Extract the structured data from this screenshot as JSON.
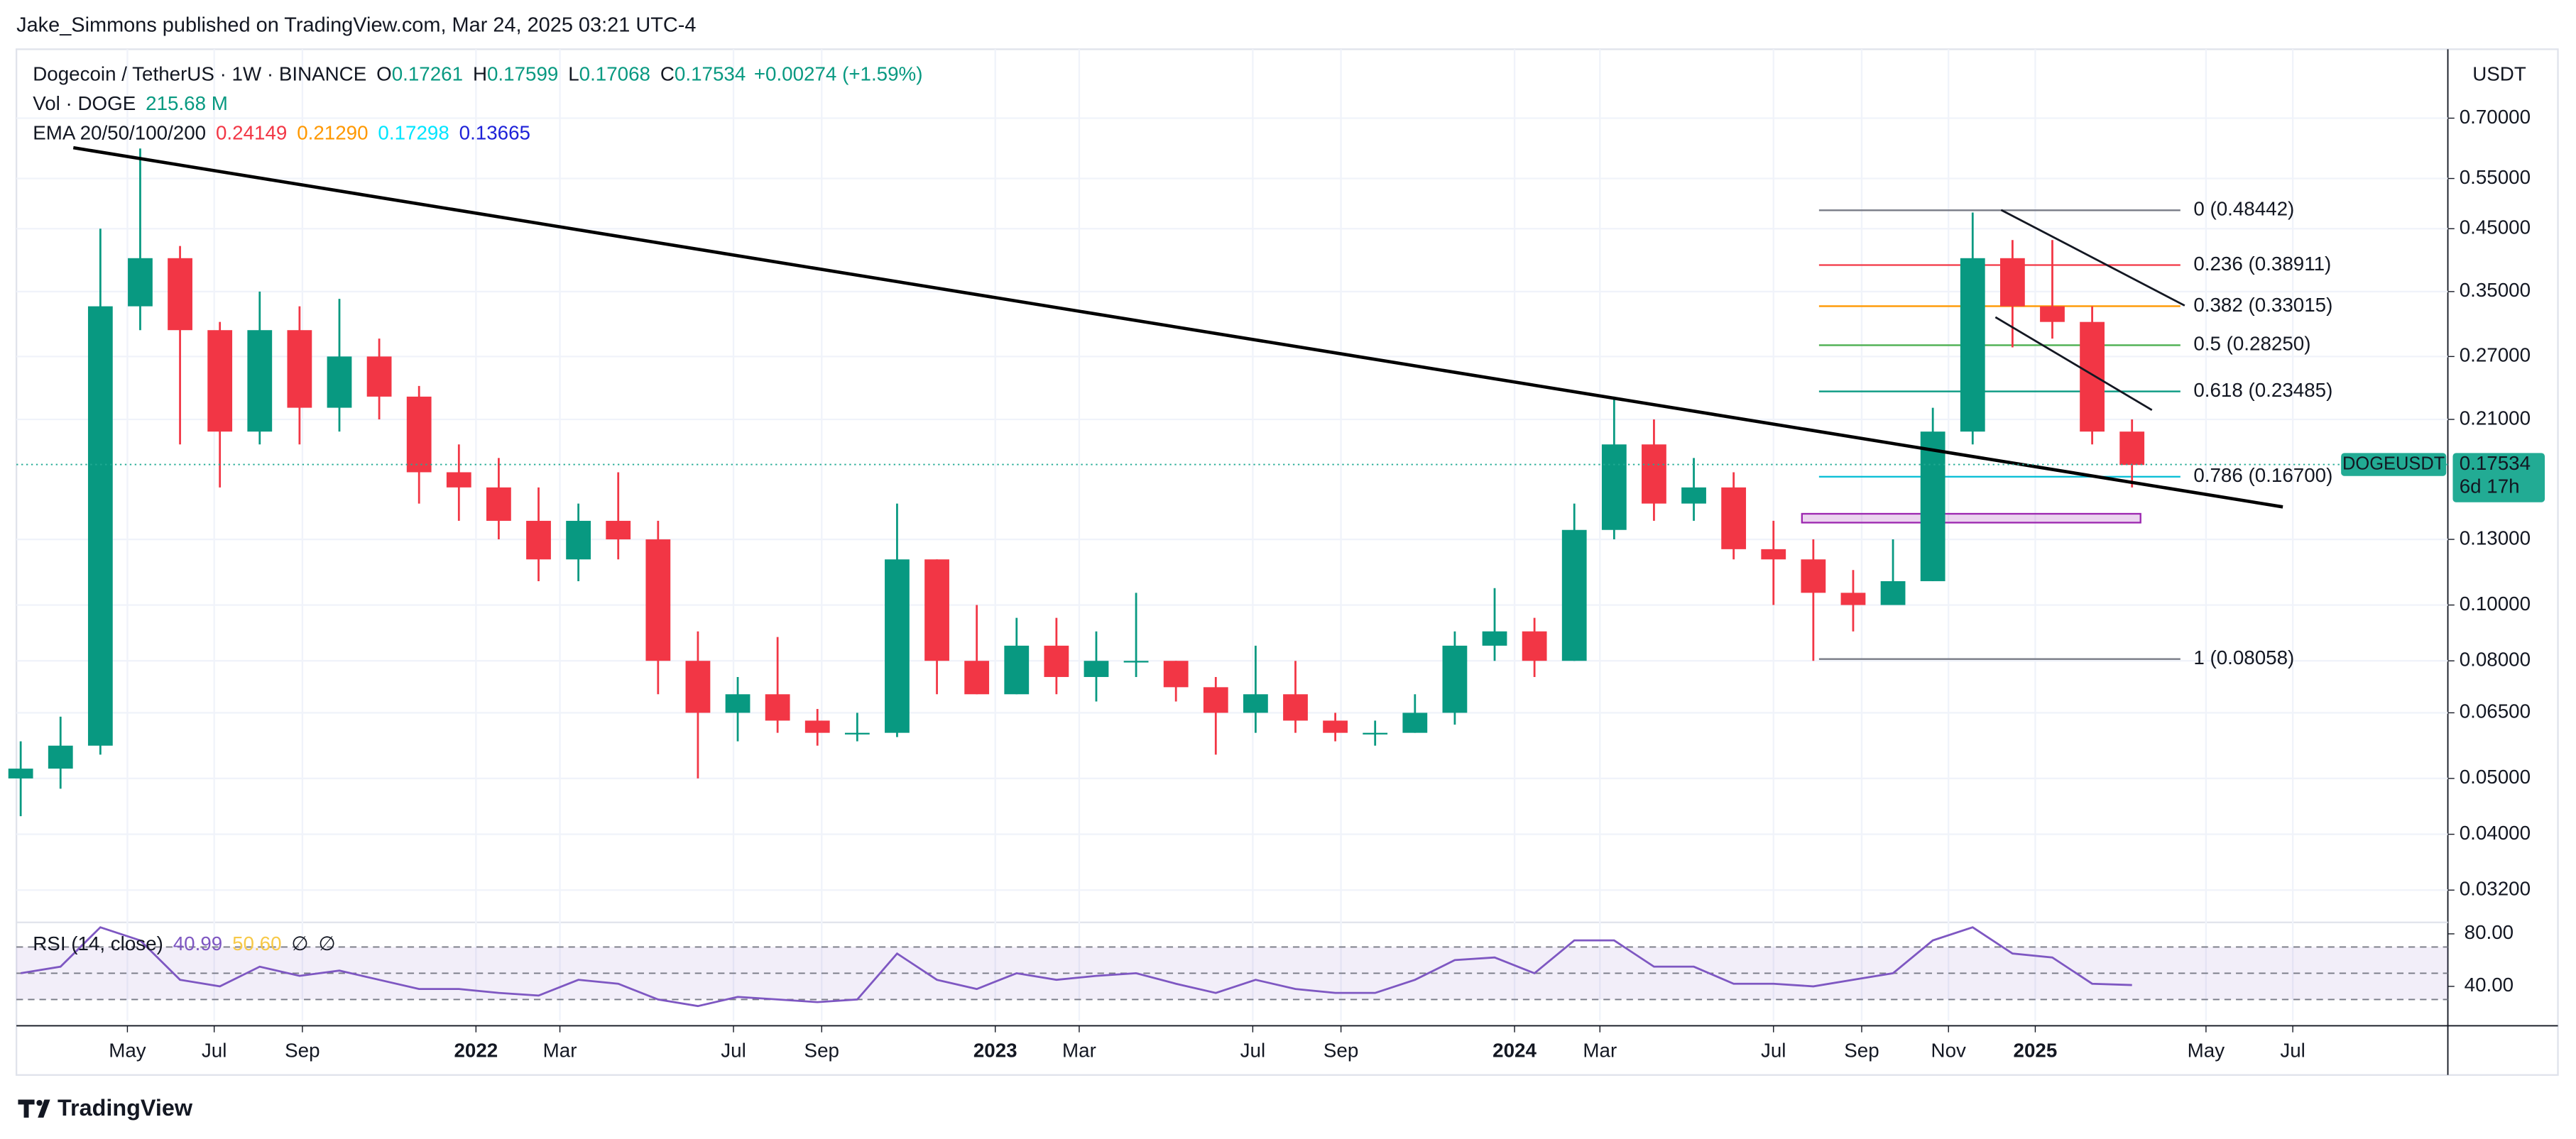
{
  "header": {
    "published": "Jake_Simmons published on TradingView.com, Mar 24, 2025 03:21 UTC-4"
  },
  "chart_data": {
    "type": "candlestick",
    "symbol": "Dogecoin / TetherUS · 1W · BINANCE",
    "ohlc_legend": [
      {
        "key": "O",
        "value": "0.17261"
      },
      {
        "key": "H",
        "value": "0.17599"
      },
      {
        "key": "L",
        "value": "0.17068"
      },
      {
        "key": "C",
        "value": "0.17534"
      }
    ],
    "change": "+0.00274 (+1.59%)",
    "volume_legend": {
      "label": "Vol · DOGE",
      "value": "215.68 M"
    },
    "ema_legend": {
      "label": "EMA 20/50/100/200",
      "values": [
        {
          "text": "0.24149",
          "color": "#f23645"
        },
        {
          "text": "0.21290",
          "color": "#ff9800"
        },
        {
          "text": "0.17298",
          "color": "#00e5ff"
        },
        {
          "text": "0.13665",
          "color": "#1e22d8"
        }
      ]
    },
    "y_axis_title": "USDT",
    "up_color": "#089981",
    "down_color": "#f23645",
    "log_scale": true,
    "grid": true,
    "ylim": [
      0.0285,
      0.922
    ],
    "yticks": [
      {
        "value": 0.7,
        "label": "0.70000"
      },
      {
        "value": 0.55,
        "label": "0.55000"
      },
      {
        "value": 0.45,
        "label": "0.45000"
      },
      {
        "value": 0.35,
        "label": "0.35000"
      },
      {
        "value": 0.27,
        "label": "0.27000"
      },
      {
        "value": 0.21,
        "label": "0.21000"
      },
      {
        "value": 0.13,
        "label": "0.13000"
      },
      {
        "value": 0.1,
        "label": "0.10000"
      },
      {
        "value": 0.08,
        "label": "0.08000"
      },
      {
        "value": 0.065,
        "label": "0.06500"
      },
      {
        "value": 0.05,
        "label": "0.05000"
      },
      {
        "value": 0.04,
        "label": "0.04000"
      },
      {
        "value": 0.032,
        "label": "0.03200"
      }
    ],
    "xlim": [
      "2021-02-12",
      "2025-10-18"
    ],
    "xticks": [
      {
        "value": "2021-05-01",
        "label": "May"
      },
      {
        "value": "2021-07-01",
        "label": "Jul"
      },
      {
        "value": "2021-09-01",
        "label": "Sep"
      },
      {
        "value": "2022-01-01",
        "label": "2022"
      },
      {
        "value": "2022-03-01",
        "label": "Mar"
      },
      {
        "value": "2022-07-01",
        "label": "Jul"
      },
      {
        "value": "2022-09-01",
        "label": "Sep"
      },
      {
        "value": "2023-01-01",
        "label": "2023"
      },
      {
        "value": "2023-03-01",
        "label": "Mar"
      },
      {
        "value": "2023-07-01",
        "label": "Jul"
      },
      {
        "value": "2023-09-01",
        "label": "Sep"
      },
      {
        "value": "2024-01-01",
        "label": "2024"
      },
      {
        "value": "2024-03-01",
        "label": "Mar"
      },
      {
        "value": "2024-07-01",
        "label": "Jul"
      },
      {
        "value": "2024-09-01",
        "label": "Sep"
      },
      {
        "value": "2024-11-01",
        "label": "Nov"
      },
      {
        "value": "2025-01-01",
        "label": "2025"
      },
      {
        "value": "2025-05-01",
        "label": "May"
      },
      {
        "value": "2025-07-01",
        "label": "Jul"
      }
    ],
    "x": [
      "2021-02-15",
      "2021-03-15",
      "2021-04-12",
      "2021-05-10",
      "2021-06-07",
      "2021-07-05",
      "2021-08-02",
      "2021-08-30",
      "2021-09-27",
      "2021-10-25",
      "2021-11-22",
      "2021-12-20",
      "2022-01-17",
      "2022-02-14",
      "2022-03-14",
      "2022-04-11",
      "2022-05-09",
      "2022-06-06",
      "2022-07-04",
      "2022-08-01",
      "2022-08-29",
      "2022-09-26",
      "2022-10-24",
      "2022-11-21",
      "2022-12-19",
      "2023-01-16",
      "2023-02-13",
      "2023-03-13",
      "2023-04-10",
      "2023-05-08",
      "2023-06-05",
      "2023-07-03",
      "2023-07-31",
      "2023-08-28",
      "2023-09-25",
      "2023-10-23",
      "2023-11-20",
      "2023-12-18",
      "2024-01-15",
      "2024-02-12",
      "2024-03-11",
      "2024-04-08",
      "2024-05-06",
      "2024-06-03",
      "2024-07-01",
      "2024-07-29",
      "2024-08-26",
      "2024-09-23",
      "2024-10-21",
      "2024-11-18",
      "2024-12-16",
      "2025-01-13",
      "2025-02-10",
      "2025-03-10"
    ],
    "open": [
      0.05,
      0.052,
      0.057,
      0.33,
      0.4,
      0.3,
      0.2,
      0.3,
      0.22,
      0.27,
      0.23,
      0.17,
      0.16,
      0.14,
      0.12,
      0.14,
      0.13,
      0.08,
      0.065,
      0.07,
      0.063,
      0.06,
      0.06,
      0.12,
      0.08,
      0.07,
      0.085,
      0.075,
      0.08,
      0.08,
      0.072,
      0.065,
      0.07,
      0.063,
      0.06,
      0.06,
      0.065,
      0.085,
      0.09,
      0.08,
      0.135,
      0.19,
      0.15,
      0.16,
      0.125,
      0.12,
      0.105,
      0.1,
      0.11,
      0.2,
      0.4,
      0.33,
      0.31,
      0.2
    ],
    "high": [
      0.058,
      0.064,
      0.45,
      0.62,
      0.42,
      0.31,
      0.35,
      0.33,
      0.34,
      0.29,
      0.24,
      0.19,
      0.18,
      0.16,
      0.15,
      0.17,
      0.14,
      0.09,
      0.075,
      0.088,
      0.066,
      0.065,
      0.15,
      0.12,
      0.1,
      0.095,
      0.095,
      0.09,
      0.105,
      0.08,
      0.075,
      0.085,
      0.08,
      0.065,
      0.063,
      0.07,
      0.09,
      0.107,
      0.095,
      0.15,
      0.23,
      0.21,
      0.18,
      0.17,
      0.14,
      0.13,
      0.115,
      0.13,
      0.22,
      0.48,
      0.43,
      0.43,
      0.33,
      0.21
    ],
    "low": [
      0.043,
      0.048,
      0.055,
      0.3,
      0.19,
      0.16,
      0.19,
      0.19,
      0.2,
      0.21,
      0.15,
      0.14,
      0.13,
      0.11,
      0.11,
      0.12,
      0.07,
      0.05,
      0.058,
      0.06,
      0.057,
      0.058,
      0.059,
      0.07,
      0.07,
      0.07,
      0.07,
      0.068,
      0.075,
      0.068,
      0.055,
      0.06,
      0.06,
      0.058,
      0.057,
      0.06,
      0.062,
      0.08,
      0.075,
      0.08,
      0.13,
      0.14,
      0.14,
      0.12,
      0.1,
      0.08,
      0.09,
      0.1,
      0.11,
      0.19,
      0.28,
      0.29,
      0.19,
      0.16
    ],
    "close": [
      0.052,
      0.057,
      0.33,
      0.4,
      0.3,
      0.2,
      0.3,
      0.22,
      0.27,
      0.23,
      0.17,
      0.16,
      0.14,
      0.12,
      0.14,
      0.13,
      0.08,
      0.065,
      0.07,
      0.063,
      0.06,
      0.06,
      0.12,
      0.08,
      0.07,
      0.085,
      0.075,
      0.08,
      0.08,
      0.072,
      0.065,
      0.07,
      0.063,
      0.06,
      0.06,
      0.065,
      0.085,
      0.09,
      0.08,
      0.135,
      0.19,
      0.15,
      0.16,
      0.125,
      0.12,
      0.105,
      0.1,
      0.11,
      0.2,
      0.4,
      0.33,
      0.31,
      0.2,
      0.175
    ],
    "last_price": {
      "value": 0.17534,
      "symbol": "DOGEUSDT",
      "countdown": "6d 17h",
      "color": "#22ab94"
    },
    "fibonacci": {
      "start": "2024-08-02",
      "end": "2025-04-13",
      "levels": [
        {
          "label": "0 (0.48442)",
          "price": 0.48442,
          "color": "#787b86"
        },
        {
          "label": "0.236 (0.38911)",
          "price": 0.38911,
          "color": "#f23645"
        },
        {
          "label": "0.382 (0.33015)",
          "price": 0.33015,
          "color": "#ff9800"
        },
        {
          "label": "0.5 (0.28250)",
          "price": 0.2825,
          "color": "#4caf50"
        },
        {
          "label": "0.618 (0.23485)",
          "price": 0.23485,
          "color": "#089981"
        },
        {
          "label": "0.786 (0.16700)",
          "price": 0.167,
          "color": "#00bcd4"
        },
        {
          "label": "1 (0.08058)",
          "price": 0.08058,
          "color": "#787b86"
        }
      ]
    },
    "trendlines": [
      {
        "color": "#000000",
        "points": [
          {
            "date": "2021-03-24",
            "price": 0.622
          },
          {
            "date": "2025-06-24",
            "price": 0.148
          }
        ]
      },
      {
        "color": "#131722",
        "points": [
          {
            "date": "2024-12-08",
            "price": 0.485
          },
          {
            "date": "2025-04-16",
            "price": 0.331
          }
        ]
      },
      {
        "color": "#131722",
        "points": [
          {
            "date": "2024-12-04",
            "price": 0.316
          },
          {
            "date": "2025-03-24",
            "price": 0.218
          }
        ]
      }
    ],
    "zone": {
      "start": "2024-07-21",
      "end": "2025-03-16",
      "top": 0.144,
      "bottom": 0.139,
      "color": "#9c27b0"
    },
    "rsi": {
      "label": "RSI (14, close)",
      "readouts": [
        {
          "text": "40.99",
          "color": "#7e57c2"
        },
        {
          "text": "50.60",
          "color": "#f7c948"
        },
        {
          "text": "∅",
          "color": "#131722"
        },
        {
          "text": "∅",
          "color": "#131722"
        }
      ],
      "color": "#7e57c2",
      "ylim": [
        13.75,
        87.5
      ],
      "yticks": [
        {
          "value": 80,
          "label": "80.00"
        },
        {
          "value": 40,
          "label": "40.00"
        }
      ],
      "levels": [
        70,
        50,
        30
      ],
      "values": [
        50,
        55,
        85,
        75,
        45,
        40,
        55,
        48,
        52,
        45,
        38,
        38,
        35,
        33,
        45,
        42,
        30,
        25,
        32,
        30,
        28,
        30,
        65,
        45,
        38,
        50,
        45,
        48,
        50,
        42,
        35,
        45,
        38,
        35,
        35,
        45,
        60,
        62,
        50,
        75,
        75,
        55,
        55,
        42,
        42,
        40,
        45,
        50,
        75,
        85,
        65,
        62,
        42,
        41
      ]
    }
  },
  "footer": {
    "brand": "TradingView"
  }
}
